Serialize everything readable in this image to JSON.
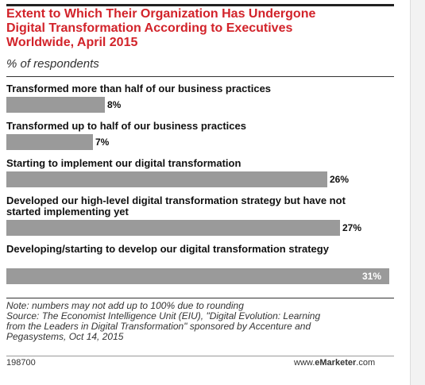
{
  "header": {
    "title": "Extent to Which Their Organization Has Undergone\nDigital Transformation According to Executives\nWorldwide, April 2015",
    "subtitle": "% of respondents"
  },
  "chart_data": {
    "type": "bar",
    "orientation": "horizontal",
    "categories": [
      "Transformed more than half of our business practices",
      "Transformed up to half of our business practices",
      "Starting to implement our digital transformation",
      "Developed our high-level digital transformation strategy but have not started implementing yet",
      "Developing/starting to develop our digital transformation strategy"
    ],
    "values": [
      8,
      7,
      26,
      27,
      31
    ],
    "value_labels": [
      "8%",
      "7%",
      "26%",
      "27%",
      "31%"
    ],
    "unit": "%",
    "bar_color": "#9a9a9a",
    "xlim": [
      0,
      31
    ]
  },
  "footer": {
    "note": "Note: numbers may not add up to 100% due to rounding\nSource: The Economist Intelligence Unit (EIU), \"Digital Evolution: Learning\nfrom the Leaders in Digital Transformation\" sponsored by Accenture and\nPegasystems, Oct 14, 2015",
    "code": "198700",
    "brand_prefix": "www.",
    "brand_name": "eMarketer",
    "brand_suffix": ".com"
  },
  "colors": {
    "title": "#d2232a",
    "bar": "#9a9a9a"
  }
}
